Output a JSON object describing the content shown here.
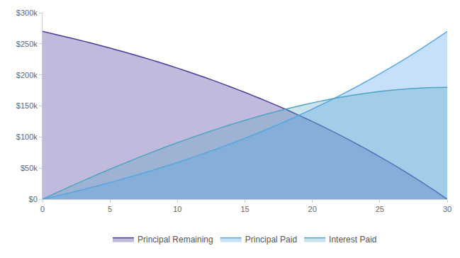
{
  "chart_data": {
    "type": "area",
    "x": [
      0,
      1,
      2,
      3,
      4,
      5,
      6,
      7,
      8,
      9,
      10,
      11,
      12,
      13,
      14,
      15,
      16,
      17,
      18,
      19,
      20,
      21,
      22,
      23,
      24,
      25,
      26,
      27,
      28,
      29,
      30
    ],
    "series": [
      {
        "name": "Principal Remaining",
        "color": "#4a3b9c",
        "values": [
          270000,
          265000,
          259900,
          254500,
          249000,
          243200,
          237200,
          231000,
          224600,
          217900,
          210900,
          203700,
          196200,
          188400,
          180300,
          171900,
          163200,
          154200,
          144800,
          135100,
          125000,
          114500,
          103600,
          92300,
          80500,
          68300,
          55700,
          42500,
          28900,
          14700,
          0
        ]
      },
      {
        "name": "Principal Paid",
        "color": "#5aa6ea",
        "values": [
          0,
          5000,
          10100,
          15500,
          21000,
          26800,
          32800,
          39000,
          45400,
          52100,
          59100,
          66300,
          73800,
          81600,
          89700,
          98100,
          106800,
          115800,
          125200,
          134900,
          145000,
          155500,
          166400,
          177700,
          189500,
          201700,
          214300,
          227500,
          241100,
          255300,
          270000
        ]
      },
      {
        "name": "Interest Paid",
        "color": "#4fa3c4",
        "values": [
          0,
          10000,
          19900,
          29500,
          39000,
          48200,
          57200,
          66000,
          74600,
          82900,
          90900,
          98700,
          106200,
          113400,
          120300,
          126900,
          133200,
          139200,
          144800,
          150100,
          155000,
          159500,
          163600,
          167300,
          170500,
          173300,
          175700,
          177500,
          178900,
          179700,
          180000
        ]
      }
    ],
    "xlim": [
      0,
      30
    ],
    "xticks": [
      0,
      5,
      10,
      15,
      20,
      25,
      30
    ],
    "ylim": [
      0,
      300000
    ],
    "yticks": [
      {
        "value": 0,
        "label": "$0"
      },
      {
        "value": 50000,
        "label": "$50k"
      },
      {
        "value": 100000,
        "label": "$100k"
      },
      {
        "value": 150000,
        "label": "$150k"
      },
      {
        "value": 200000,
        "label": "$200k"
      },
      {
        "value": 250000,
        "label": "$250k"
      },
      {
        "value": 300000,
        "label": "$300k"
      }
    ],
    "grid": false,
    "legend": "bottom"
  }
}
